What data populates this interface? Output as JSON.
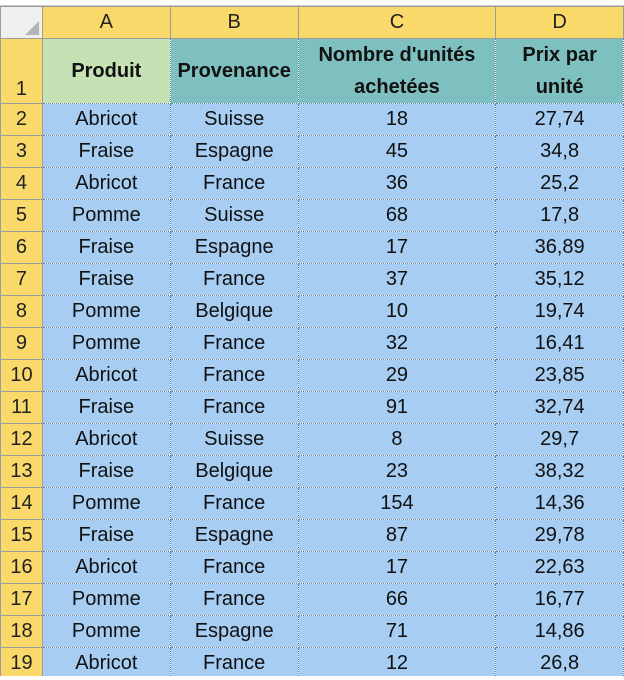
{
  "columns": [
    "A",
    "B",
    "C",
    "D"
  ],
  "headers": {
    "row_number": "1",
    "produit": "Produit",
    "provenance": "Provenance",
    "nombre": "Nombre d'unités achetées",
    "prix": "Prix par unité"
  },
  "rows": [
    {
      "n": "2",
      "produit": "Abricot",
      "provenance": "Suisse",
      "nombre": "18",
      "prix": "27,74"
    },
    {
      "n": "3",
      "produit": "Fraise",
      "provenance": "Espagne",
      "nombre": "45",
      "prix": "34,8"
    },
    {
      "n": "4",
      "produit": "Abricot",
      "provenance": "France",
      "nombre": "36",
      "prix": "25,2"
    },
    {
      "n": "5",
      "produit": "Pomme",
      "provenance": "Suisse",
      "nombre": "68",
      "prix": "17,8"
    },
    {
      "n": "6",
      "produit": "Fraise",
      "provenance": "Espagne",
      "nombre": "17",
      "prix": "36,89"
    },
    {
      "n": "7",
      "produit": "Fraise",
      "provenance": "France",
      "nombre": "37",
      "prix": "35,12"
    },
    {
      "n": "8",
      "produit": "Pomme",
      "provenance": "Belgique",
      "nombre": "10",
      "prix": "19,74"
    },
    {
      "n": "9",
      "produit": "Pomme",
      "provenance": "France",
      "nombre": "32",
      "prix": "16,41"
    },
    {
      "n": "10",
      "produit": "Abricot",
      "provenance": "France",
      "nombre": "29",
      "prix": "23,85"
    },
    {
      "n": "11",
      "produit": "Fraise",
      "provenance": "France",
      "nombre": "91",
      "prix": "32,74"
    },
    {
      "n": "12",
      "produit": "Abricot",
      "provenance": "Suisse",
      "nombre": "8",
      "prix": "29,7"
    },
    {
      "n": "13",
      "produit": "Fraise",
      "provenance": "Belgique",
      "nombre": "23",
      "prix": "38,32"
    },
    {
      "n": "14",
      "produit": "Pomme",
      "provenance": "France",
      "nombre": "154",
      "prix": "14,36"
    },
    {
      "n": "15",
      "produit": "Fraise",
      "provenance": "Espagne",
      "nombre": "87",
      "prix": "29,78"
    },
    {
      "n": "16",
      "produit": "Abricot",
      "provenance": "France",
      "nombre": "17",
      "prix": "22,63"
    },
    {
      "n": "17",
      "produit": "Pomme",
      "provenance": "France",
      "nombre": "66",
      "prix": "16,77"
    },
    {
      "n": "18",
      "produit": "Pomme",
      "provenance": "Espagne",
      "nombre": "71",
      "prix": "14,86"
    },
    {
      "n": "19",
      "produit": "Abricot",
      "provenance": "France",
      "nombre": "12",
      "prix": "26,8"
    }
  ],
  "colors": {
    "header_yellow": "#f9d96a",
    "cell_blue": "#a7cdf2",
    "header_green": "#c6e2b5",
    "header_teal": "#7ec0c0"
  }
}
